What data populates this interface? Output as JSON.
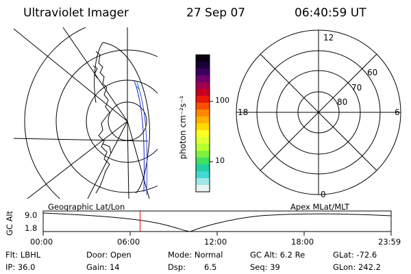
{
  "header": {
    "title": "Ultraviolet Imager",
    "date": "27 Sep 07",
    "time": "06:40:59 UT"
  },
  "colorbar": {
    "unit_label": "photon cm⁻²s⁻¹",
    "ticks": [
      "100",
      "10"
    ],
    "colors": [
      "#0a0012",
      "#1a0035",
      "#3a0060",
      "#70006a",
      "#a00050",
      "#c8001e",
      "#e8180a",
      "#f85000",
      "#ff8800",
      "#ffb000",
      "#ffd800",
      "#ffff20",
      "#e0ff30",
      "#b8ff30",
      "#80f040",
      "#40e060",
      "#20d0a0",
      "#40d8d0",
      "#a0e8e8",
      "#e8f4f4"
    ]
  },
  "polar": {
    "mlt_labels": {
      "top": "12",
      "bottom": "0",
      "left": "18",
      "right": "6"
    },
    "lat_labels": [
      "60",
      "70",
      "80"
    ]
  },
  "timeline": {
    "left_label": "Geographic Lat/Lon",
    "right_label": "Apex MLat/MLT",
    "axis_title": "GC Alt",
    "y_ticks": [
      "9.0",
      "1.8"
    ],
    "x_ticks": [
      "00:00",
      "06:00",
      "12:00",
      "18:00",
      "23:59"
    ],
    "current_time_fraction": 0.2785
  },
  "info": {
    "flt": "Flt: LBHL",
    "ip": "IP: 36.0",
    "door": "Door: Open",
    "gain": "Gain: 14",
    "mode": "Mode: Normal",
    "dsp_label": "Dsp:",
    "dsp_value": "6.5",
    "gcalt": "GC Alt: 6.2 Re",
    "seq": "Seq: 39",
    "glat": "GLat: -72.6",
    "glon": "GLon: 242.2"
  }
}
